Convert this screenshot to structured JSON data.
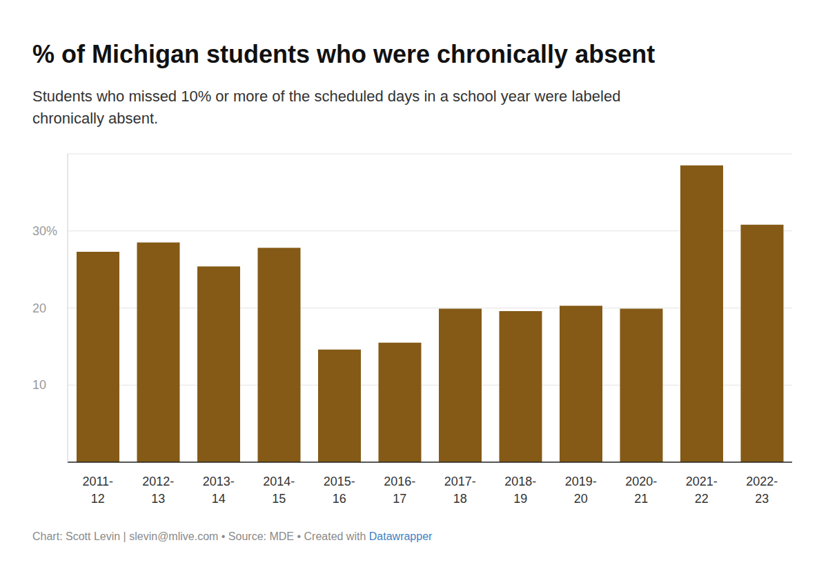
{
  "chart_data": {
    "type": "bar",
    "title": "% of Michigan students who were chronically absent",
    "subtitle": "Students who missed 10% or more of the scheduled days in a school year were labeled chronically absent.",
    "footer": "Chart: Scott Levin | slevin@mlive.com • Source: MDE • Created with",
    "footer_link": "Datawrapper",
    "categories": [
      "2011-12",
      "2012-13",
      "2013-14",
      "2014-15",
      "2015-16",
      "2016-17",
      "2017-18",
      "2018-19",
      "2019-20",
      "2020-21",
      "2021-22",
      "2022-23"
    ],
    "values": [
      27.3,
      28.5,
      25.4,
      27.8,
      14.6,
      15.5,
      19.9,
      19.6,
      20.3,
      19.9,
      38.5,
      30.8
    ],
    "color": "#845a16",
    "ylim": [
      0,
      40
    ],
    "yticks": [
      10,
      20,
      {
        "value": 30,
        "label": "30%"
      }
    ],
    "grid": true
  }
}
